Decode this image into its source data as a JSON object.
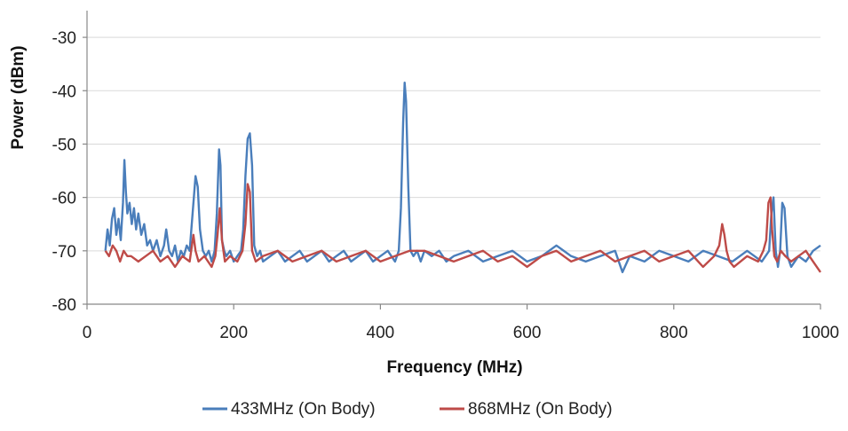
{
  "chart_data": {
    "type": "line",
    "title": "",
    "xlabel": "Frequency (MHz)",
    "ylabel": "Power (dBm)",
    "xlim": [
      0,
      1000
    ],
    "ylim": [
      -80,
      -25
    ],
    "xticks": [
      0,
      200,
      400,
      600,
      800,
      1000
    ],
    "yticks": [
      -80,
      -70,
      -60,
      -50,
      -40,
      -30
    ],
    "xtick_labels": [
      "0",
      "200",
      "400",
      "600",
      "800",
      "1000"
    ],
    "ytick_labels": [
      "-80",
      "-70",
      "-60",
      "-50",
      "-40",
      "-30"
    ],
    "grid": "horizontal",
    "legend_position": "bottom",
    "series": [
      {
        "name": "433MHz (On Body)",
        "color": "#4a7ebb",
        "x": [
          25,
          28,
          31,
          34,
          37,
          40,
          43,
          46,
          49,
          51,
          53,
          55,
          58,
          61,
          64,
          67,
          70,
          74,
          78,
          82,
          86,
          90,
          95,
          100,
          105,
          108,
          112,
          116,
          120,
          124,
          128,
          132,
          136,
          140,
          144,
          148,
          151,
          154,
          158,
          162,
          166,
          170,
          174,
          177,
          180,
          182,
          184,
          187,
          190,
          195,
          200,
          205,
          210,
          213,
          216,
          219,
          222,
          225,
          228,
          232,
          236,
          240,
          250,
          260,
          270,
          280,
          290,
          300,
          310,
          320,
          330,
          340,
          350,
          360,
          370,
          380,
          390,
          400,
          410,
          420,
          425,
          428,
          431,
          433,
          435,
          438,
          441,
          445,
          450,
          455,
          460,
          470,
          480,
          490,
          500,
          520,
          540,
          560,
          580,
          600,
          620,
          640,
          660,
          680,
          700,
          720,
          730,
          740,
          760,
          780,
          800,
          820,
          840,
          860,
          880,
          900,
          910,
          920,
          925,
          930,
          933,
          936,
          939,
          942,
          945,
          948,
          951,
          955,
          960,
          970,
          980,
          990,
          1000
        ],
        "y": [
          -70,
          -66,
          -69,
          -64,
          -62,
          -67,
          -64,
          -68,
          -61,
          -53,
          -59,
          -63,
          -61,
          -65,
          -62,
          -66,
          -63,
          -67,
          -65,
          -69,
          -68,
          -70,
          -68,
          -71,
          -69,
          -66,
          -70,
          -71,
          -69,
          -72,
          -70,
          -71,
          -69,
          -70,
          -63,
          -56,
          -58,
          -66,
          -70,
          -71,
          -70,
          -72,
          -70,
          -63,
          -51,
          -54,
          -68,
          -70,
          -71,
          -70,
          -72,
          -71,
          -70,
          -66,
          -56,
          -49,
          -48,
          -54,
          -69,
          -71,
          -70,
          -72,
          -71,
          -70,
          -72,
          -71,
          -70,
          -72,
          -71,
          -70,
          -72,
          -71,
          -70,
          -72,
          -71,
          -70,
          -72,
          -71,
          -70,
          -72,
          -70,
          -62,
          -46,
          -38.5,
          -42,
          -58,
          -70,
          -71,
          -70,
          -72,
          -70,
          -71,
          -70,
          -72,
          -71,
          -70,
          -72,
          -71,
          -70,
          -72,
          -71,
          -69,
          -71,
          -72,
          -71,
          -70,
          -74,
          -71,
          -72,
          -70,
          -71,
          -72,
          -70,
          -71,
          -72,
          -70,
          -71,
          -72,
          -71,
          -70,
          -63,
          -60,
          -70,
          -73,
          -70,
          -61,
          -62,
          -71,
          -73,
          -71,
          -72,
          -70,
          -69
        ]
      },
      {
        "name": "868MHz (On Body)",
        "color": "#be4b48",
        "x": [
          25,
          30,
          35,
          40,
          45,
          50,
          55,
          60,
          70,
          80,
          90,
          100,
          110,
          120,
          130,
          140,
          145,
          148,
          152,
          160,
          170,
          175,
          178,
          181,
          184,
          188,
          195,
          205,
          212,
          216,
          219,
          222,
          225,
          230,
          240,
          260,
          280,
          300,
          320,
          340,
          360,
          380,
          400,
          420,
          440,
          460,
          480,
          500,
          520,
          540,
          560,
          580,
          600,
          620,
          640,
          660,
          680,
          700,
          720,
          740,
          760,
          780,
          800,
          820,
          840,
          855,
          862,
          866,
          869,
          872,
          876,
          882,
          900,
          915,
          922,
          926,
          929,
          932,
          934,
          937,
          941,
          946,
          952,
          960,
          970,
          980,
          990,
          1000
        ],
        "y": [
          -70,
          -71,
          -69,
          -70,
          -72,
          -70,
          -71,
          -71,
          -72,
          -71,
          -70,
          -72,
          -71,
          -73,
          -71,
          -72,
          -67,
          -70,
          -72,
          -71,
          -73,
          -71,
          -67,
          -62,
          -68,
          -72,
          -71,
          -72,
          -70,
          -65,
          -57.5,
          -59,
          -70,
          -72,
          -71,
          -70,
          -72,
          -71,
          -70,
          -72,
          -71,
          -70,
          -72,
          -71,
          -70,
          -70,
          -71,
          -72,
          -71,
          -70,
          -72,
          -71,
          -73,
          -71,
          -70,
          -72,
          -71,
          -70,
          -72,
          -71,
          -70,
          -72,
          -71,
          -70,
          -73,
          -71,
          -69,
          -65,
          -67,
          -70,
          -72,
          -73,
          -71,
          -72,
          -70,
          -68,
          -61,
          -60,
          -66,
          -71,
          -72,
          -70,
          -71,
          -72,
          -71,
          -70,
          -72,
          -74
        ]
      }
    ]
  }
}
